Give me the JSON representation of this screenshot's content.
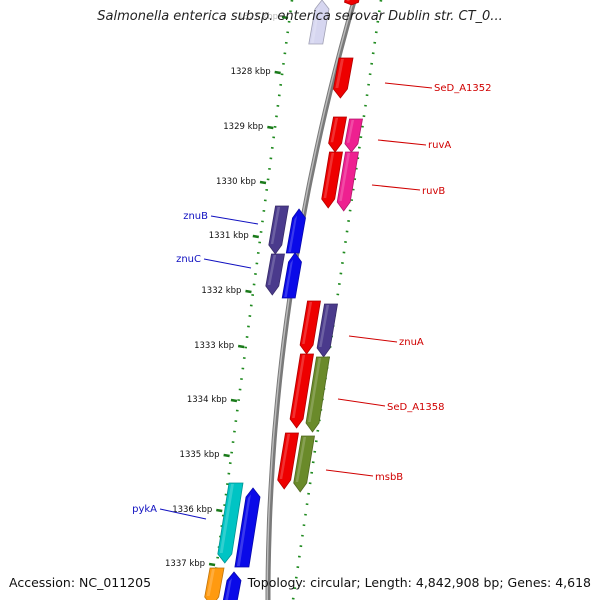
{
  "title": "Salmonella enterica subsp. enterica serovar Dublin str. CT_0...",
  "footer": {
    "accession": "Accession: NC_011205",
    "topology": "Topology: circular; Length: 4,842,908 bp; Genes: 4,618"
  },
  "colors": {
    "backbone": "#8a8a8a",
    "dots": "#1f8a1f",
    "ticks": "#1a7a1a",
    "label_forward": "#1010c0",
    "label_reverse": "#d00000",
    "red": "#ee0000",
    "magenta": "#ee2090",
    "indigo": "#4a3a8c",
    "blue": "#0a0ae8",
    "olive": "#6a8a2a",
    "cyan": "#00c4c4",
    "orange": "#ff9a10",
    "lavender": "#d6d6f0"
  },
  "scale": {
    "unit": "kbp",
    "ticks": [
      "1327 kbp",
      "1328 kbp",
      "1329 kbp",
      "1330 kbp",
      "1331 kbp",
      "1332 kbp",
      "1333 kbp",
      "1334 kbp",
      "1335 kbp",
      "1336 kbp",
      "1337 kbp"
    ]
  },
  "genes": [
    {
      "id": "SeD_A1352",
      "label": "SeD_A1352",
      "strand": "reverse",
      "color": "red"
    },
    {
      "id": "ruvA",
      "label": "ruvA",
      "strand": "reverse",
      "color": "magenta"
    },
    {
      "id": "ruvB",
      "label": "ruvB",
      "strand": "reverse",
      "color": "magenta"
    },
    {
      "id": "znuB",
      "label": "znuB",
      "strand": "forward",
      "color": "indigo"
    },
    {
      "id": "znuC",
      "label": "znuC",
      "strand": "forward",
      "color": "indigo"
    },
    {
      "id": "znuA",
      "label": "znuA",
      "strand": "reverse",
      "color": "indigo"
    },
    {
      "id": "SeD_A1358",
      "label": "SeD_A1358",
      "strand": "reverse",
      "color": "olive"
    },
    {
      "id": "msbB",
      "label": "msbB",
      "strand": "reverse",
      "color": "olive"
    },
    {
      "id": "pykA",
      "label": "pykA",
      "strand": "forward",
      "color": "cyan"
    }
  ]
}
